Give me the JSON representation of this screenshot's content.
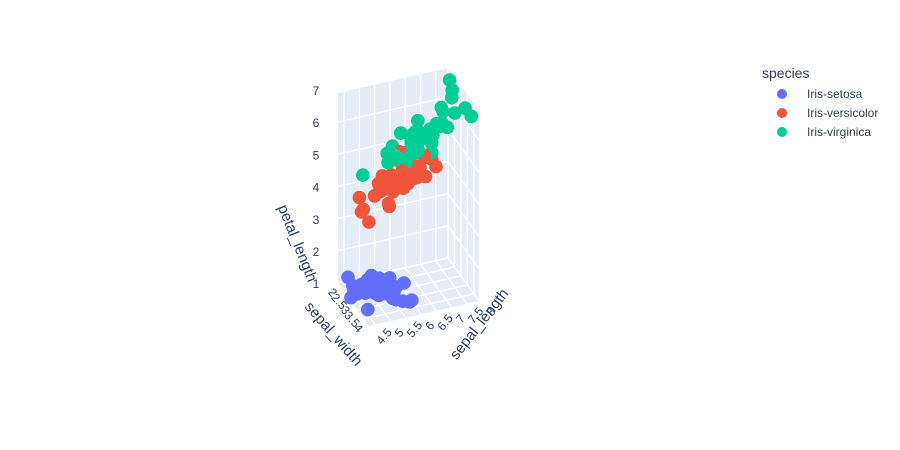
{
  "chart_data": {
    "type": "scatter3d",
    "axes": {
      "x": {
        "title": "sepal_length",
        "ticks": [
          "4.5",
          "5",
          "5.5",
          "6",
          "6.5",
          "7",
          "7.5",
          "8"
        ],
        "range": [
          4.3,
          7.9
        ]
      },
      "y": {
        "title": "sepal_width",
        "ticks": [
          "2",
          "2.5",
          "3",
          "3.5",
          "4"
        ],
        "range": [
          2.0,
          4.4
        ]
      },
      "z": {
        "title": "petal_length",
        "ticks": [
          "1",
          "2",
          "3",
          "4",
          "5",
          "6",
          "7"
        ],
        "range": [
          1.0,
          6.9
        ]
      }
    },
    "legend": {
      "title": "species",
      "position": "top-right",
      "items": [
        {
          "name": "Iris-setosa",
          "color": "#636efa"
        },
        {
          "name": "Iris-versicolor",
          "color": "#EF553B"
        },
        {
          "name": "Iris-virginica",
          "color": "#00cc96"
        }
      ]
    },
    "series": [
      {
        "name": "Iris-setosa",
        "color": "#636efa",
        "points": [
          [
            5.1,
            3.5,
            1.4
          ],
          [
            4.9,
            3.0,
            1.4
          ],
          [
            4.7,
            3.2,
            1.3
          ],
          [
            4.6,
            3.1,
            1.5
          ],
          [
            5.0,
            3.6,
            1.4
          ],
          [
            5.4,
            3.9,
            1.7
          ],
          [
            4.6,
            3.4,
            1.4
          ],
          [
            5.0,
            3.4,
            1.5
          ],
          [
            4.4,
            2.9,
            1.4
          ],
          [
            4.9,
            3.1,
            1.5
          ],
          [
            5.4,
            3.7,
            1.5
          ],
          [
            4.8,
            3.4,
            1.6
          ],
          [
            4.8,
            3.0,
            1.4
          ],
          [
            4.3,
            3.0,
            1.1
          ],
          [
            5.8,
            4.0,
            1.2
          ],
          [
            5.7,
            4.4,
            1.5
          ],
          [
            5.4,
            3.9,
            1.3
          ],
          [
            5.1,
            3.5,
            1.4
          ],
          [
            5.7,
            3.8,
            1.7
          ],
          [
            5.1,
            3.8,
            1.5
          ],
          [
            5.4,
            3.4,
            1.7
          ],
          [
            5.1,
            3.7,
            1.5
          ],
          [
            4.6,
            3.6,
            1.0
          ],
          [
            5.1,
            3.3,
            1.7
          ],
          [
            4.8,
            3.4,
            1.9
          ],
          [
            5.0,
            3.0,
            1.6
          ],
          [
            5.0,
            3.4,
            1.6
          ],
          [
            5.2,
            3.5,
            1.5
          ],
          [
            5.2,
            3.4,
            1.4
          ],
          [
            4.7,
            3.2,
            1.6
          ],
          [
            4.8,
            3.1,
            1.6
          ],
          [
            5.4,
            3.4,
            1.5
          ],
          [
            5.2,
            4.1,
            1.5
          ],
          [
            5.5,
            4.2,
            1.4
          ],
          [
            5.0,
            3.2,
            1.2
          ],
          [
            5.5,
            3.5,
            1.3
          ],
          [
            4.4,
            3.0,
            1.3
          ],
          [
            5.1,
            3.4,
            1.5
          ],
          [
            5.0,
            3.5,
            1.3
          ],
          [
            4.5,
            2.3,
            1.3
          ],
          [
            4.4,
            3.2,
            1.3
          ],
          [
            5.0,
            3.5,
            1.6
          ],
          [
            5.1,
            3.8,
            1.9
          ],
          [
            4.8,
            3.0,
            1.4
          ],
          [
            5.3,
            3.7,
            1.5
          ],
          [
            5.0,
            3.3,
            1.4
          ]
        ]
      },
      {
        "name": "Iris-versicolor",
        "color": "#EF553B",
        "points": [
          [
            7.0,
            3.2,
            4.7
          ],
          [
            6.4,
            3.2,
            4.5
          ],
          [
            6.9,
            3.1,
            4.9
          ],
          [
            5.5,
            2.3,
            4.0
          ],
          [
            6.5,
            2.8,
            4.6
          ],
          [
            5.7,
            2.8,
            4.5
          ],
          [
            6.3,
            3.3,
            4.7
          ],
          [
            4.9,
            2.4,
            3.3
          ],
          [
            6.6,
            2.9,
            4.6
          ],
          [
            5.2,
            2.7,
            3.9
          ],
          [
            5.0,
            2.0,
            3.5
          ],
          [
            5.9,
            3.0,
            4.2
          ],
          [
            6.0,
            2.2,
            4.0
          ],
          [
            6.1,
            2.9,
            4.7
          ],
          [
            5.6,
            2.9,
            3.6
          ],
          [
            6.7,
            3.1,
            4.4
          ],
          [
            5.6,
            3.0,
            4.5
          ],
          [
            5.8,
            2.7,
            4.1
          ],
          [
            6.2,
            2.2,
            4.5
          ],
          [
            5.6,
            2.5,
            3.9
          ],
          [
            5.9,
            3.2,
            4.8
          ],
          [
            6.1,
            2.8,
            4.0
          ],
          [
            6.3,
            2.5,
            4.9
          ],
          [
            6.4,
            2.9,
            4.3
          ],
          [
            6.6,
            3.0,
            4.4
          ],
          [
            6.8,
            2.8,
            4.8
          ],
          [
            6.7,
            3.0,
            5.0
          ],
          [
            6.0,
            2.9,
            4.5
          ],
          [
            5.7,
            2.6,
            3.5
          ],
          [
            5.5,
            2.4,
            3.8
          ],
          [
            5.8,
            2.7,
            3.9
          ],
          [
            6.0,
            2.7,
            5.1
          ],
          [
            5.4,
            3.0,
            4.5
          ],
          [
            6.0,
            3.4,
            4.5
          ],
          [
            6.3,
            2.3,
            4.4
          ],
          [
            5.5,
            2.5,
            4.0
          ],
          [
            5.5,
            2.6,
            4.4
          ],
          [
            6.1,
            3.0,
            4.6
          ],
          [
            5.0,
            2.3,
            3.3
          ],
          [
            5.7,
            3.0,
            4.2
          ],
          [
            5.7,
            2.9,
            4.2
          ],
          [
            6.2,
            2.9,
            4.3
          ],
          [
            5.1,
            2.5,
            3.0
          ],
          [
            5.7,
            2.8,
            4.1
          ]
        ]
      },
      {
        "name": "Iris-virginica",
        "color": "#00cc96",
        "points": [
          [
            6.3,
            3.3,
            6.0
          ],
          [
            5.8,
            2.7,
            5.1
          ],
          [
            7.1,
            3.0,
            5.9
          ],
          [
            6.3,
            2.9,
            5.6
          ],
          [
            6.5,
            3.0,
            5.8
          ],
          [
            7.6,
            3.0,
            6.6
          ],
          [
            4.9,
            2.5,
            4.5
          ],
          [
            7.3,
            2.9,
            6.3
          ],
          [
            6.7,
            2.5,
            5.8
          ],
          [
            7.2,
            3.6,
            6.1
          ],
          [
            6.4,
            2.7,
            5.3
          ],
          [
            6.8,
            3.0,
            5.5
          ],
          [
            5.7,
            2.5,
            5.0
          ],
          [
            5.8,
            2.8,
            5.1
          ],
          [
            6.4,
            3.2,
            5.3
          ],
          [
            6.5,
            3.0,
            5.5
          ],
          [
            7.7,
            3.8,
            6.7
          ],
          [
            7.7,
            2.6,
            6.9
          ],
          [
            6.0,
            2.2,
            5.0
          ],
          [
            6.9,
            3.2,
            5.7
          ],
          [
            5.6,
            2.8,
            4.9
          ],
          [
            7.7,
            2.8,
            6.7
          ],
          [
            6.3,
            2.7,
            4.9
          ],
          [
            6.7,
            3.3,
            5.7
          ],
          [
            7.2,
            3.2,
            6.0
          ],
          [
            6.2,
            2.8,
            4.8
          ],
          [
            6.1,
            3.0,
            4.9
          ],
          [
            6.4,
            2.8,
            5.6
          ],
          [
            7.2,
            3.0,
            5.8
          ],
          [
            7.4,
            2.8,
            6.1
          ],
          [
            7.9,
            3.8,
            6.4
          ],
          [
            6.4,
            2.8,
            5.6
          ],
          [
            6.3,
            2.8,
            5.1
          ],
          [
            6.1,
            2.6,
            5.6
          ],
          [
            7.7,
            3.0,
            6.1
          ],
          [
            6.3,
            3.4,
            5.6
          ],
          [
            6.4,
            3.1,
            5.5
          ],
          [
            6.0,
            3.0,
            4.8
          ],
          [
            6.9,
            3.1,
            5.4
          ],
          [
            6.7,
            3.1,
            5.6
          ],
          [
            6.9,
            3.1,
            5.1
          ],
          [
            6.8,
            3.2,
            5.9
          ],
          [
            6.7,
            3.3,
            5.7
          ],
          [
            6.5,
            3.0,
            5.2
          ],
          [
            6.2,
            3.4,
            5.4
          ],
          [
            5.9,
            3.0,
            5.1
          ]
        ]
      }
    ]
  }
}
